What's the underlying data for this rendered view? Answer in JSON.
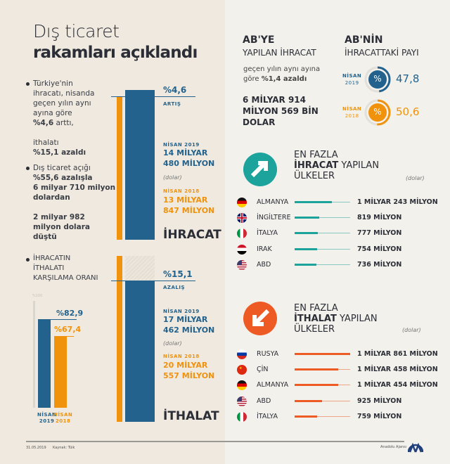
{
  "title": {
    "line1": "Dış ticaret",
    "line2": "rakamları açıklandı"
  },
  "bullets": {
    "b1": [
      "Türkiye'nin",
      "ihracatı, nisanda",
      "geçen yılın aynı",
      "ayına göre"
    ],
    "b1_bold": "%4,6",
    "b1_tail": " arttı,",
    "b1b": "ithalatı",
    "b1b_bold": "%15,1 azaldı",
    "b2": "Dış ticaret açığı",
    "b2_bold": [
      "%55,6 azalışla",
      "6 milyar 710 milyon",
      "dolardan"
    ],
    "b2b": [
      "2 milyar 982",
      "milyon dolara",
      "düştü"
    ],
    "b3": [
      "İHRACATIN",
      "İTHALATI",
      "KARŞILAMA ORANI"
    ]
  },
  "export": {
    "change": "%4,6",
    "change_label": "ARTIŞ",
    "y2019_label": "NİSAN 2019",
    "y2019": [
      "14 MİLYAR",
      "480 MİLYON"
    ],
    "unit": "(dolar)",
    "y2018_label": "NİSAN 2018",
    "y2018": [
      "13 MİLYAR",
      "847 MİLYON"
    ],
    "title": "İHRACAT"
  },
  "import": {
    "change": "%15,1",
    "change_label": "AZALIŞ",
    "y2019_label": "NİSAN 2019",
    "y2019": [
      "17 MİLYAR",
      "462 MİLYON"
    ],
    "unit": "(dolar)",
    "y2018_label": "NİSAN 2018",
    "y2018": [
      "20 MİLYAR",
      "557 MİLYON"
    ],
    "title": "İTHALAT"
  },
  "coverage": {
    "axis_max": "%100",
    "v2019": "%82,9",
    "v2018": "%67,4",
    "l2019": [
      "NİSAN",
      "2019"
    ],
    "l2018": [
      "NİSAN",
      "2018"
    ]
  },
  "ab_export": {
    "title1": "AB'YE",
    "title2": "YAPILAN İHRACAT",
    "desc1": "geçen yılın aynı ayına",
    "desc2": "göre ",
    "desc_bold": "%1,4 azaldı",
    "amount": [
      "6 MİLYAR 914",
      "MİLYON 569 BİN",
      "DOLAR"
    ]
  },
  "ab_share": {
    "title1": "AB'NİN",
    "title2": "İHRACATTAKİ PAYI",
    "symbol": "%",
    "items": [
      {
        "label": [
          "NİSAN",
          "2019"
        ],
        "value": "47,8"
      },
      {
        "label": [
          "NİSAN",
          "2018"
        ],
        "value": "50,6"
      }
    ]
  },
  "top_export": {
    "h1": "EN FAZLA",
    "h2_bold": "İHRACAT",
    "h2": " YAPILAN",
    "h3": "ÜLKELER",
    "unit": "(dolar)",
    "rows": [
      {
        "country": "ALMANYA",
        "value": "1 MİLYAR 243 MİLYON",
        "flag": "de"
      },
      {
        "country": "İNGİLTERE",
        "value": "819 MİLYON",
        "flag": "gb"
      },
      {
        "country": "İTALYA",
        "value": "777 MİLYON",
        "flag": "it"
      },
      {
        "country": "IRAK",
        "value": "754 MİLYON",
        "flag": "iq"
      },
      {
        "country": "ABD",
        "value": "736 MİLYON",
        "flag": "us"
      }
    ]
  },
  "top_import": {
    "h1": "EN FAZLA",
    "h2_bold": "İTHALAT",
    "h2": " YAPILAN",
    "h3": "ÜLKELER",
    "unit": "(dolar)",
    "rows": [
      {
        "country": "RUSYA",
        "value": "1 MİLYAR 861 MİLYON",
        "flag": "ru"
      },
      {
        "country": "ÇİN",
        "value": "1 MİLYAR 458 MİLYON",
        "flag": "cn"
      },
      {
        "country": "ALMANYA",
        "value": "1 MİLYAR 454 MİLYON",
        "flag": "de"
      },
      {
        "country": "ABD",
        "value": "925 MİLYON",
        "flag": "us"
      },
      {
        "country": "İTALYA",
        "value": "759 MİLYON",
        "flag": "it"
      }
    ]
  },
  "footer": {
    "date": "31.05.2019",
    "source": "Kaynak: Tüik",
    "agency": "Anadolu Ajansı"
  },
  "colors": {
    "blue": "#22628d",
    "orange": "#f0920c",
    "teal": "#1ba39c",
    "red_orange": "#ee5a24"
  },
  "chart_data": [
    {
      "type": "bar",
      "title": "İHRACAT",
      "categories": [
        "NİSAN 2018",
        "NİSAN 2019"
      ],
      "values": [
        13.847,
        14.48
      ],
      "unit": "milyar dolar"
    },
    {
      "type": "bar",
      "title": "İTHALAT",
      "categories": [
        "NİSAN 2018",
        "NİSAN 2019"
      ],
      "values": [
        20.557,
        17.462
      ],
      "unit": "milyar dolar"
    },
    {
      "type": "bar",
      "title": "İHRACATIN İTHALATI KARŞILAMA ORANI",
      "categories": [
        "NİSAN 2019",
        "NİSAN 2018"
      ],
      "values": [
        82.9,
        67.4
      ],
      "ylim": [
        0,
        100
      ]
    },
    {
      "type": "pie",
      "title": "AB'NİN İHRACATTAKİ PAYI",
      "categories": [
        "NİSAN 2019",
        "NİSAN 2018"
      ],
      "values": [
        47.8,
        50.6
      ]
    },
    {
      "type": "bar",
      "title": "EN FAZLA İHRACAT YAPILAN ÜLKELER",
      "categories": [
        "ALMANYA",
        "İNGİLTERE",
        "İTALYA",
        "IRAK",
        "ABD"
      ],
      "values": [
        1243,
        819,
        777,
        754,
        736
      ],
      "unit": "milyon dolar"
    },
    {
      "type": "bar",
      "title": "EN FAZLA İTHALAT YAPILAN ÜLKELER",
      "categories": [
        "RUSYA",
        "ÇİN",
        "ALMANYA",
        "ABD",
        "İTALYA"
      ],
      "values": [
        1861,
        1458,
        1454,
        925,
        759
      ],
      "unit": "milyon dolar"
    }
  ]
}
